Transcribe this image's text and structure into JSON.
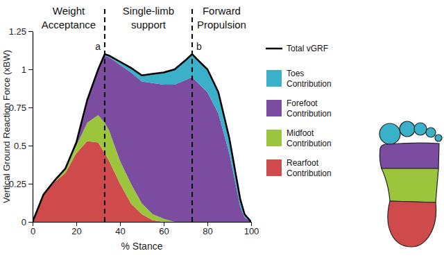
{
  "chart_data": {
    "type": "area",
    "stacked": true,
    "legend": "right",
    "x_label": "% Stance",
    "y_label": "Vertical Ground Reaction Force (xBW)",
    "x": [
      0,
      5,
      10,
      15,
      20,
      25,
      30,
      33,
      35,
      40,
      45,
      50,
      55,
      60,
      65,
      70,
      73,
      75,
      80,
      85,
      90,
      95,
      97,
      100
    ],
    "xlim": [
      0,
      100
    ],
    "xticks": [
      0,
      20,
      40,
      60,
      80,
      100
    ],
    "ylim": [
      0,
      1.25
    ],
    "yticks": [
      0,
      0.25,
      0.5,
      0.75,
      1,
      1.25
    ],
    "series": [
      {
        "name": "Total vGRF",
        "type": "line",
        "color": "#000000",
        "values": [
          0,
          0.18,
          0.27,
          0.35,
          0.52,
          0.8,
          1.0,
          1.1,
          1.09,
          1.05,
          1.01,
          0.96,
          0.97,
          0.98,
          1.0,
          1.06,
          1.1,
          1.07,
          1.0,
          0.85,
          0.55,
          0.15,
          0.05,
          0
        ]
      },
      {
        "name": "Toes Contribution",
        "type": "area",
        "color": "#3ab0c9",
        "values": [
          0,
          0,
          0,
          0,
          0,
          0,
          0,
          0.01,
          0.01,
          0.02,
          0.03,
          0.04,
          0.06,
          0.08,
          0.1,
          0.13,
          0.15,
          0.15,
          0.15,
          0.14,
          0.1,
          0.05,
          0.02,
          0
        ]
      },
      {
        "name": "Forefoot Contribution",
        "type": "area",
        "color": "#7b4c9f",
        "values": [
          0,
          0,
          0,
          0,
          0.02,
          0.15,
          0.3,
          0.44,
          0.48,
          0.63,
          0.73,
          0.8,
          0.86,
          0.88,
          0.9,
          0.93,
          0.95,
          0.92,
          0.85,
          0.71,
          0.45,
          0.1,
          0.03,
          0
        ]
      },
      {
        "name": "Midfoot Contribution",
        "type": "area",
        "color": "#9bc53d",
        "values": [
          0,
          0,
          0.01,
          0.03,
          0.05,
          0.12,
          0.18,
          0.2,
          0.2,
          0.15,
          0.13,
          0.07,
          0.04,
          0.02,
          0,
          0,
          0,
          0,
          0,
          0,
          0,
          0,
          0,
          0
        ]
      },
      {
        "name": "Rearfoot Contribution",
        "type": "area",
        "color": "#cf4a4b",
        "values": [
          0,
          0.18,
          0.26,
          0.32,
          0.45,
          0.53,
          0.52,
          0.45,
          0.4,
          0.25,
          0.12,
          0.05,
          0.01,
          0,
          0,
          0,
          0,
          0,
          0,
          0,
          0,
          0,
          0,
          0
        ]
      }
    ],
    "phases": [
      "Weight Acceptance",
      "Single-limb support",
      "Forward Propulsion"
    ],
    "phase_boundaries": [
      {
        "x": 33,
        "label": "a"
      },
      {
        "x": 73,
        "label": "b"
      }
    ]
  }
}
